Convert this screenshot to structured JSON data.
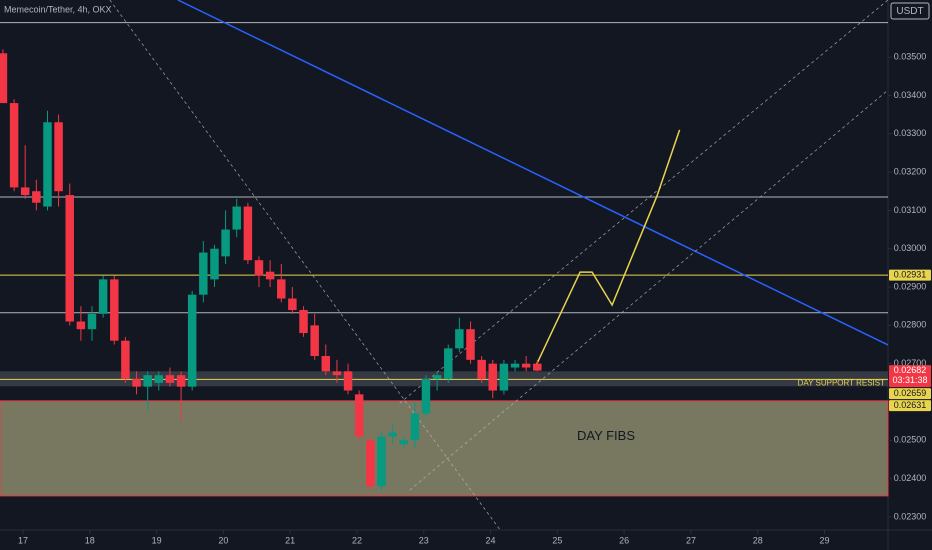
{
  "chart_data": {
    "type": "candlestick",
    "title": "Memecoin/Tether, 4h, OKX",
    "currency": "USDT",
    "up_color": "#089981",
    "down_color": "#f23645",
    "xlim": [
      16.656,
      29.95
    ],
    "xticks": [
      17,
      18,
      19,
      20,
      21,
      22,
      23,
      24,
      25,
      26,
      27,
      28,
      29
    ],
    "ylim": [
      0.02266,
      0.03649
    ],
    "yticks": [
      {
        "value": 0.023,
        "label": "0.02300"
      },
      {
        "value": 0.024,
        "label": "0.02400"
      },
      {
        "value": 0.025,
        "label": "0.02500"
      },
      {
        "value": 0.027,
        "label": "0.02700"
      },
      {
        "value": 0.028,
        "label": "0.02800"
      },
      {
        "value": 0.029,
        "label": "0.02900"
      },
      {
        "value": 0.03,
        "label": "0.03000"
      },
      {
        "value": 0.031,
        "label": "0.03100"
      },
      {
        "value": 0.032,
        "label": "0.03200"
      },
      {
        "value": 0.033,
        "label": "0.03300"
      },
      {
        "value": 0.034,
        "label": "0.03400"
      },
      {
        "value": 0.035,
        "label": "0.03500"
      }
    ],
    "x": [
      16.7,
      16.867,
      17.033,
      17.2,
      17.367,
      17.533,
      17.7,
      17.867,
      18.033,
      18.2,
      18.367,
      18.533,
      18.7,
      18.867,
      19.033,
      19.2,
      19.367,
      19.533,
      19.7,
      19.867,
      20.033,
      20.2,
      20.367,
      20.533,
      20.7,
      20.867,
      21.033,
      21.2,
      21.367,
      21.533,
      21.7,
      21.867,
      22.033,
      22.2,
      22.367,
      22.533,
      22.7,
      22.867,
      23.033,
      23.2,
      23.367,
      23.533,
      23.7,
      23.867,
      24.033,
      24.2,
      24.367,
      24.533,
      24.7
    ],
    "open": [
      0.0351,
      0.0338,
      0.0316,
      0.0315,
      0.0311,
      0.0333,
      0.0314,
      0.0281,
      0.0279,
      0.0283,
      0.0292,
      0.0276,
      0.0266,
      0.0264,
      0.0265,
      0.0267,
      0.0267,
      0.0264,
      0.0288,
      0.0292,
      0.0298,
      0.0305,
      0.0311,
      0.0297,
      0.0294,
      0.0292,
      0.0287,
      0.0284,
      0.028,
      0.0272,
      0.0268,
      0.0268,
      0.0262,
      0.025,
      0.0238,
      0.0251,
      0.0249,
      0.025,
      0.0257,
      0.0266,
      0.0266,
      0.0274,
      0.0279,
      0.0271,
      0.027,
      0.0263,
      0.0269,
      0.027,
      0.027
    ],
    "high": [
      0.0352,
      0.0339,
      0.0327,
      0.0318,
      0.0336,
      0.0335,
      0.0317,
      0.0285,
      0.0285,
      0.0293,
      0.0293,
      0.0277,
      0.0268,
      0.0268,
      0.0268,
      0.0269,
      0.0268,
      0.0289,
      0.0302,
      0.0301,
      0.031,
      0.0313,
      0.0312,
      0.0298,
      0.0297,
      0.0296,
      0.029,
      0.0285,
      0.0283,
      0.0275,
      0.0271,
      0.027,
      0.0263,
      0.0251,
      0.0252,
      0.0254,
      0.0251,
      0.026,
      0.0267,
      0.0268,
      0.0275,
      0.0282,
      0.0281,
      0.0272,
      0.0271,
      0.0271,
      0.0271,
      0.0272,
      0.0271
    ],
    "low": [
      0.0338,
      0.0315,
      0.0313,
      0.031,
      0.031,
      0.0311,
      0.028,
      0.0276,
      0.0276,
      0.0282,
      0.0275,
      0.0265,
      0.0262,
      0.0258,
      0.0263,
      0.0264,
      0.0255,
      0.0263,
      0.0286,
      0.029,
      0.0296,
      0.0303,
      0.0296,
      0.029,
      0.029,
      0.0286,
      0.0283,
      0.0277,
      0.0271,
      0.0267,
      0.0265,
      0.0262,
      0.025,
      0.0237,
      0.0237,
      0.0249,
      0.0248,
      0.0248,
      0.0256,
      0.0263,
      0.0265,
      0.0273,
      0.027,
      0.0265,
      0.0261,
      0.0262,
      0.0268,
      0.0268,
      0.0268
    ],
    "close": [
      0.0338,
      0.0316,
      0.0314,
      0.0312,
      0.0333,
      0.0315,
      0.0281,
      0.0279,
      0.0283,
      0.0292,
      0.0276,
      0.0266,
      0.0264,
      0.0267,
      0.0267,
      0.0265,
      0.0264,
      0.0288,
      0.0299,
      0.03,
      0.0305,
      0.0311,
      0.0297,
      0.0293,
      0.0292,
      0.0287,
      0.0284,
      0.0278,
      0.0272,
      0.0268,
      0.0267,
      0.0263,
      0.0251,
      0.0238,
      0.0251,
      0.0252,
      0.025,
      0.0257,
      0.0266,
      0.0267,
      0.0274,
      0.0279,
      0.0271,
      0.0266,
      0.0263,
      0.027,
      0.027,
      0.0269,
      0.02682
    ],
    "zones": [
      {
        "from": 0.02603,
        "to": 0.02355,
        "color": "#8b8a6c",
        "text": "DAY FIBS"
      },
      {
        "from": 0.0268,
        "to": 0.02641,
        "color": "#3a3d48"
      }
    ],
    "levels": [
      {
        "value": 0.0359,
        "color": "#b2b5be"
      },
      {
        "value": 0.03135,
        "color": "#b2b5be"
      },
      {
        "value": 0.02931,
        "color": "#e8d44d"
      },
      {
        "value": 0.02833,
        "color": "#b2b5be"
      },
      {
        "value": 0.02659,
        "color": "#e8d44d",
        "text": "DAY SUPPORT RESIST"
      }
    ],
    "lines": [
      {
        "color": "#2962ff",
        "dash": false,
        "points": [
          [
            19.32,
            0.03649
          ],
          [
            29.95,
            0.02749
          ]
        ]
      },
      {
        "color": "#b2b5be",
        "dash": true,
        "points": [
          [
            18.3,
            0.03649
          ],
          [
            24.14,
            0.02267
          ]
        ]
      },
      {
        "color": "#b2b5be",
        "dash": true,
        "points": [
          [
            22.64,
            0.02597
          ],
          [
            29.95,
            0.03649
          ]
        ]
      },
      {
        "color": "#b2b5be",
        "dash": true,
        "points": [
          [
            22.79,
            0.0237
          ],
          [
            29.95,
            0.03414
          ]
        ]
      },
      {
        "color": "#e8d44d",
        "dash": false,
        "points": [
          [
            24.67,
            0.02691
          ],
          [
            25.34,
            0.02939
          ],
          [
            25.52,
            0.02939
          ],
          [
            25.82,
            0.02853
          ],
          [
            26.49,
            0.03137
          ],
          [
            26.83,
            0.0331
          ]
        ]
      }
    ],
    "price_labels": [
      {
        "value": 0.02931,
        "color": "#e8d44d",
        "text_color": "#131722"
      },
      {
        "value": 0.02682,
        "color": "#f23645",
        "text_color": "#ffffff",
        "countdown": "03:31:38"
      },
      {
        "value": 0.02659,
        "color": "#e8d44d",
        "text_color": "#131722"
      },
      {
        "value": 0.02631,
        "color": "#e8d44d",
        "text_color": "#131722"
      }
    ]
  }
}
